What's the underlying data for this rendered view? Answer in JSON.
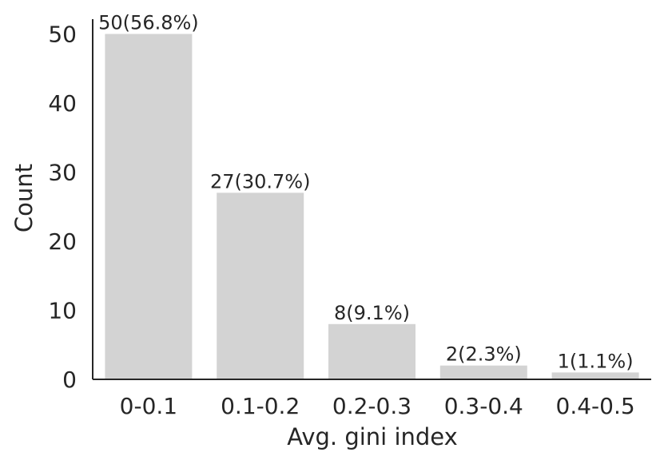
{
  "chart_data": {
    "type": "bar",
    "title": "",
    "xlabel": "Avg. gini index",
    "ylabel": "Count",
    "categories": [
      "0-0.1",
      "0.1-0.2",
      "0.2-0.3",
      "0.3-0.4",
      "0.4-0.5"
    ],
    "values": [
      50,
      27,
      8,
      2,
      1
    ],
    "data_labels": [
      "50(56.8%)",
      "27(30.7%)",
      "8(9.1%)",
      "2(2.3%)",
      "1(1.1%)"
    ],
    "yticks": [
      0,
      10,
      20,
      30,
      40,
      50
    ],
    "ylim": [
      0,
      52
    ],
    "grid": false,
    "bar_color": "#d3d3d3",
    "axis_color": "#262626"
  }
}
